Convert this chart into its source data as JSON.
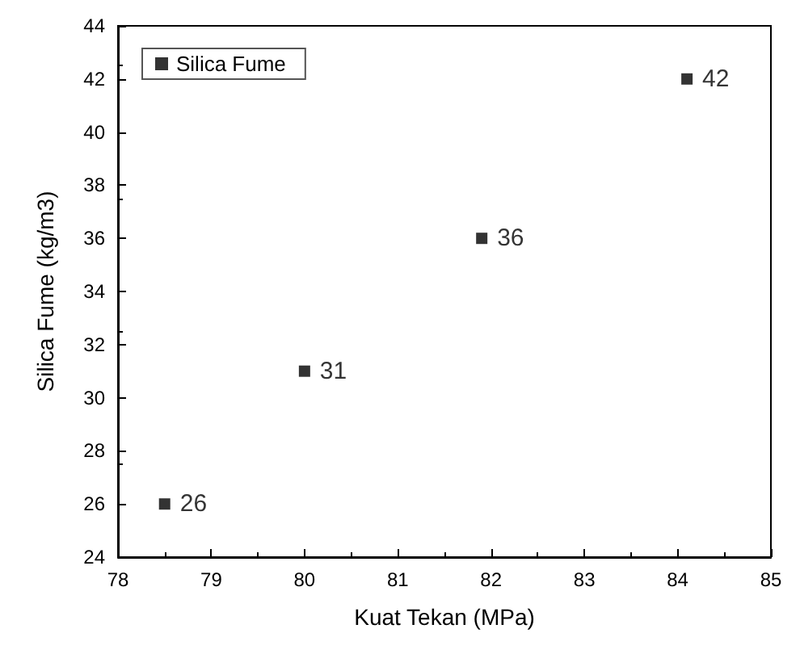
{
  "chart_data": {
    "type": "scatter",
    "xlabel": "Kuat Tekan (MPa)",
    "ylabel": "Silica Fume (kg/m3)",
    "x": [
      78.5,
      80,
      81.9,
      84.1
    ],
    "series": [
      {
        "name": "Silica Fume",
        "color": "#000000",
        "values": [
          26,
          31,
          36,
          42
        ]
      }
    ],
    "xlim": [
      78,
      85
    ],
    "xticks": [
      78,
      79,
      80,
      81,
      82,
      83,
      84,
      85
    ],
    "ylim": [
      24,
      44
    ],
    "yticks": [
      24,
      26,
      28,
      30,
      32,
      34,
      36,
      38,
      40,
      42,
      44
    ],
    "marker": "square",
    "legend": "top left",
    "grid": false,
    "data_labels": true
  }
}
